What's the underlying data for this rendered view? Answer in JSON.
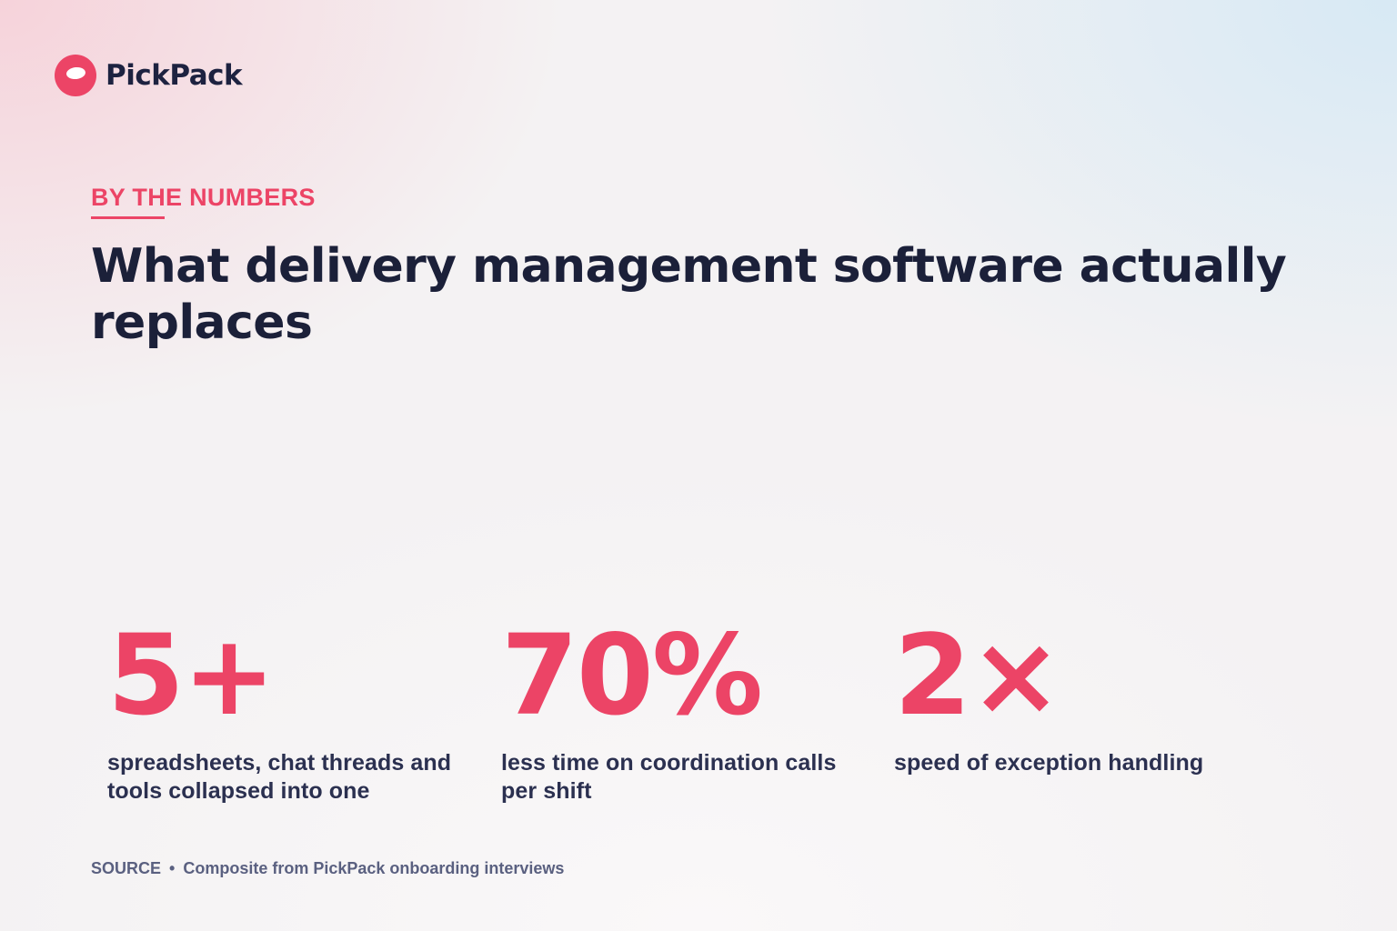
{
  "colors": {
    "accent": "#ec4466",
    "text_dark": "#1b2039",
    "text_muted": "#5a6080"
  },
  "brand": {
    "icon": "pickpack-logo-icon",
    "name": "PickPack"
  },
  "header": {
    "eyebrow": "BY THE NUMBERS",
    "title": "What delivery management software actually replaces"
  },
  "stats": [
    {
      "value": "5+",
      "label": "spreadsheets, chat threads and tools collapsed into one"
    },
    {
      "value": "70%",
      "label": "less time on coordination calls per shift"
    },
    {
      "value": "2×",
      "label": "speed of exception handling"
    }
  ],
  "footer": {
    "source_label": "SOURCE",
    "separator": "•",
    "source_text": "Composite from PickPack onboarding interviews"
  }
}
